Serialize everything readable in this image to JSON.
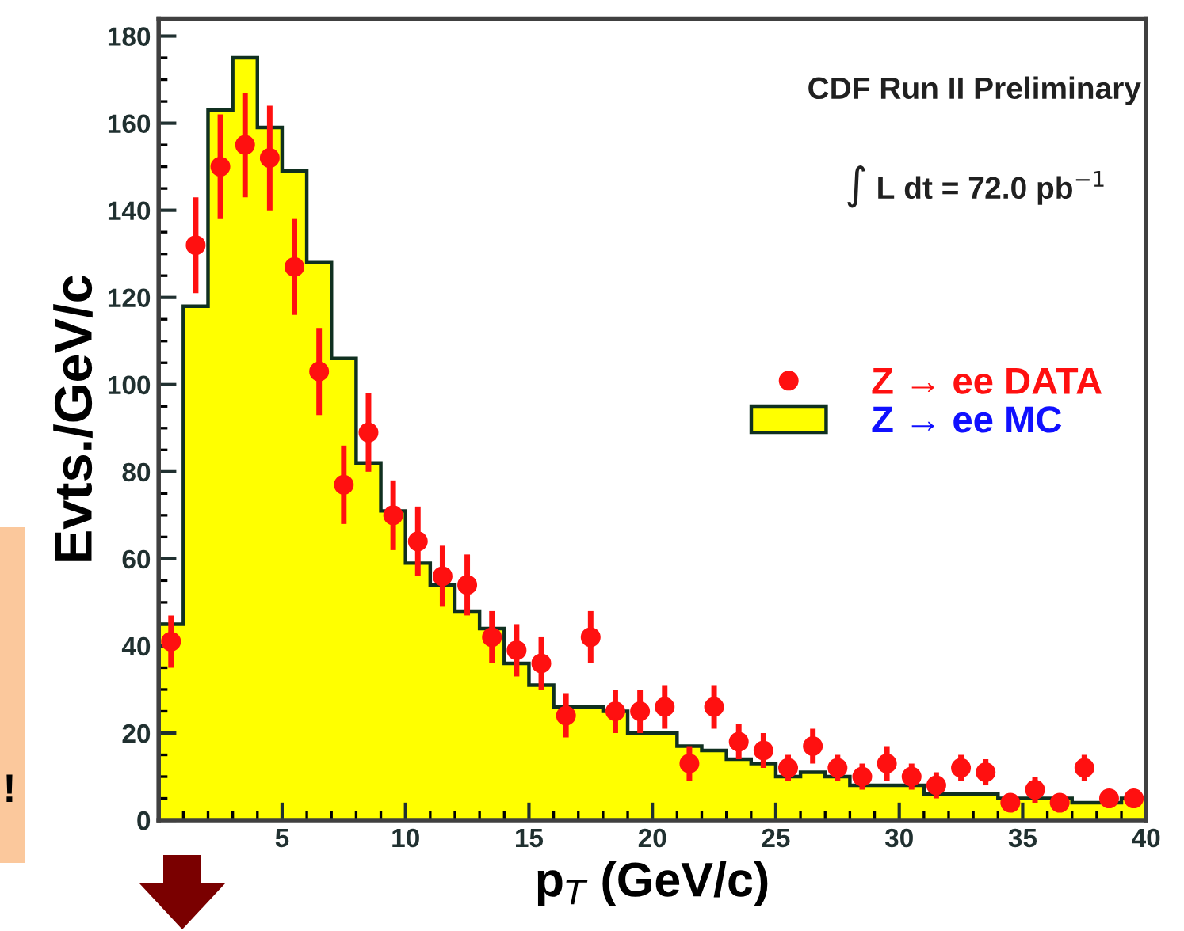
{
  "chart_data": {
    "type": "histogram",
    "xlabel": "p$_{T}$ (GeV/c)",
    "ylabel": "Evts./GeV/c",
    "xlim": [
      0,
      40
    ],
    "xticks": [
      5,
      10,
      15,
      20,
      25,
      30,
      35,
      40
    ],
    "ylim": [
      0,
      184
    ],
    "yticks": [
      0,
      20,
      40,
      60,
      80,
      100,
      120,
      140,
      160,
      180
    ],
    "bins": [
      0,
      1,
      2,
      3,
      4,
      5,
      6,
      7,
      8,
      9,
      10,
      11,
      12,
      13,
      14,
      15,
      16,
      17,
      18,
      19,
      20,
      21,
      22,
      23,
      24,
      25,
      26,
      27,
      28,
      29,
      30,
      31,
      32,
      33,
      34,
      35,
      36,
      37,
      38,
      39,
      40
    ],
    "series": [
      {
        "name": "Z → ee DATA",
        "type": "scatter",
        "color": "#ff1010",
        "marker": "circle",
        "x": [
          0.5,
          1.5,
          2.5,
          3.5,
          4.5,
          5.5,
          6.5,
          7.5,
          8.5,
          9.5,
          10.5,
          11.5,
          12.5,
          13.5,
          14.5,
          15.5,
          16.5,
          17.5,
          18.5,
          19.5,
          20.5,
          21.5,
          22.5,
          23.5,
          24.5,
          25.5,
          26.5,
          27.5,
          28.5,
          29.5,
          30.5,
          31.5,
          32.5,
          33.5,
          34.5,
          35.5,
          36.5,
          37.5,
          38.5,
          39.5
        ],
        "values": [
          41,
          132,
          150,
          155,
          152,
          127,
          103,
          77,
          89,
          70,
          64,
          56,
          54,
          42,
          39,
          36,
          24,
          42,
          25,
          25,
          26,
          13,
          26,
          18,
          16,
          12,
          17,
          12,
          10,
          13,
          10,
          8,
          12,
          11,
          4,
          7,
          4,
          12,
          5,
          5
        ],
        "errors": [
          6,
          11,
          12,
          12,
          12,
          11,
          10,
          9,
          9,
          8,
          8,
          7,
          7,
          6,
          6,
          6,
          5,
          6,
          5,
          5,
          5,
          4,
          5,
          4,
          4,
          3,
          4,
          3,
          3,
          4,
          3,
          3,
          3,
          3,
          2,
          3,
          2,
          3,
          2,
          2
        ]
      },
      {
        "name": "Z → ee MC",
        "color": "#ffff00",
        "values": [
          45,
          118,
          163,
          175,
          159,
          149,
          128,
          106,
          82,
          71,
          59,
          54,
          48,
          44,
          36,
          31,
          26,
          26,
          25,
          20,
          20,
          17,
          16,
          14,
          13,
          10,
          11,
          10,
          8,
          8,
          8,
          6,
          6,
          6,
          5,
          5,
          5,
          4,
          4,
          5
        ]
      }
    ],
    "legend": "right",
    "annotations": [
      "CDF Run II Preliminary",
      "∫ L dt = 72.0 pb$^{−1}$",
      "!"
    ]
  }
}
